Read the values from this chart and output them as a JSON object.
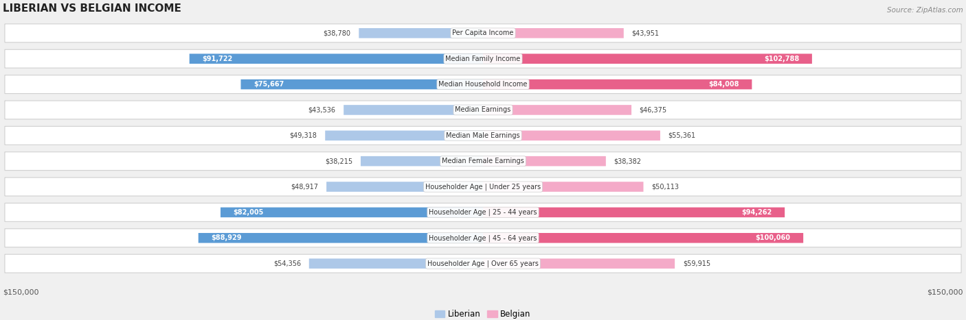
{
  "title": "LIBERIAN VS BELGIAN INCOME",
  "source": "Source: ZipAtlas.com",
  "categories": [
    "Per Capita Income",
    "Median Family Income",
    "Median Household Income",
    "Median Earnings",
    "Median Male Earnings",
    "Median Female Earnings",
    "Householder Age | Under 25 years",
    "Householder Age | 25 - 44 years",
    "Householder Age | 45 - 64 years",
    "Householder Age | Over 65 years"
  ],
  "liberian": [
    38780,
    91722,
    75667,
    43536,
    49318,
    38215,
    48917,
    82005,
    88929,
    54356
  ],
  "belgian": [
    43951,
    102788,
    84008,
    46375,
    55361,
    38382,
    50113,
    94262,
    100060,
    59915
  ],
  "liberian_labels": [
    "$38,780",
    "$91,722",
    "$75,667",
    "$43,536",
    "$49,318",
    "$38,215",
    "$48,917",
    "$82,005",
    "$88,929",
    "$54,356"
  ],
  "belgian_labels": [
    "$43,951",
    "$102,788",
    "$84,008",
    "$46,375",
    "$55,361",
    "$38,382",
    "$50,113",
    "$94,262",
    "$100,060",
    "$59,915"
  ],
  "max_val": 150000,
  "liberian_color_light": "#adc8e8",
  "liberian_color_dark": "#5b9bd5",
  "belgian_color_light": "#f4aac8",
  "belgian_color_dark": "#e8608a",
  "liberian_dark_threshold": 70000,
  "belgian_dark_threshold": 80000,
  "bg_color": "#f0f0f0",
  "row_bg_color": "#ffffff",
  "xlabel_left": "$150,000",
  "xlabel_right": "$150,000",
  "legend_liberian": "Liberian",
  "legend_belgian": "Belgian",
  "title_fontsize": 11,
  "source_fontsize": 7.5,
  "label_fontsize": 7,
  "value_fontsize": 7
}
